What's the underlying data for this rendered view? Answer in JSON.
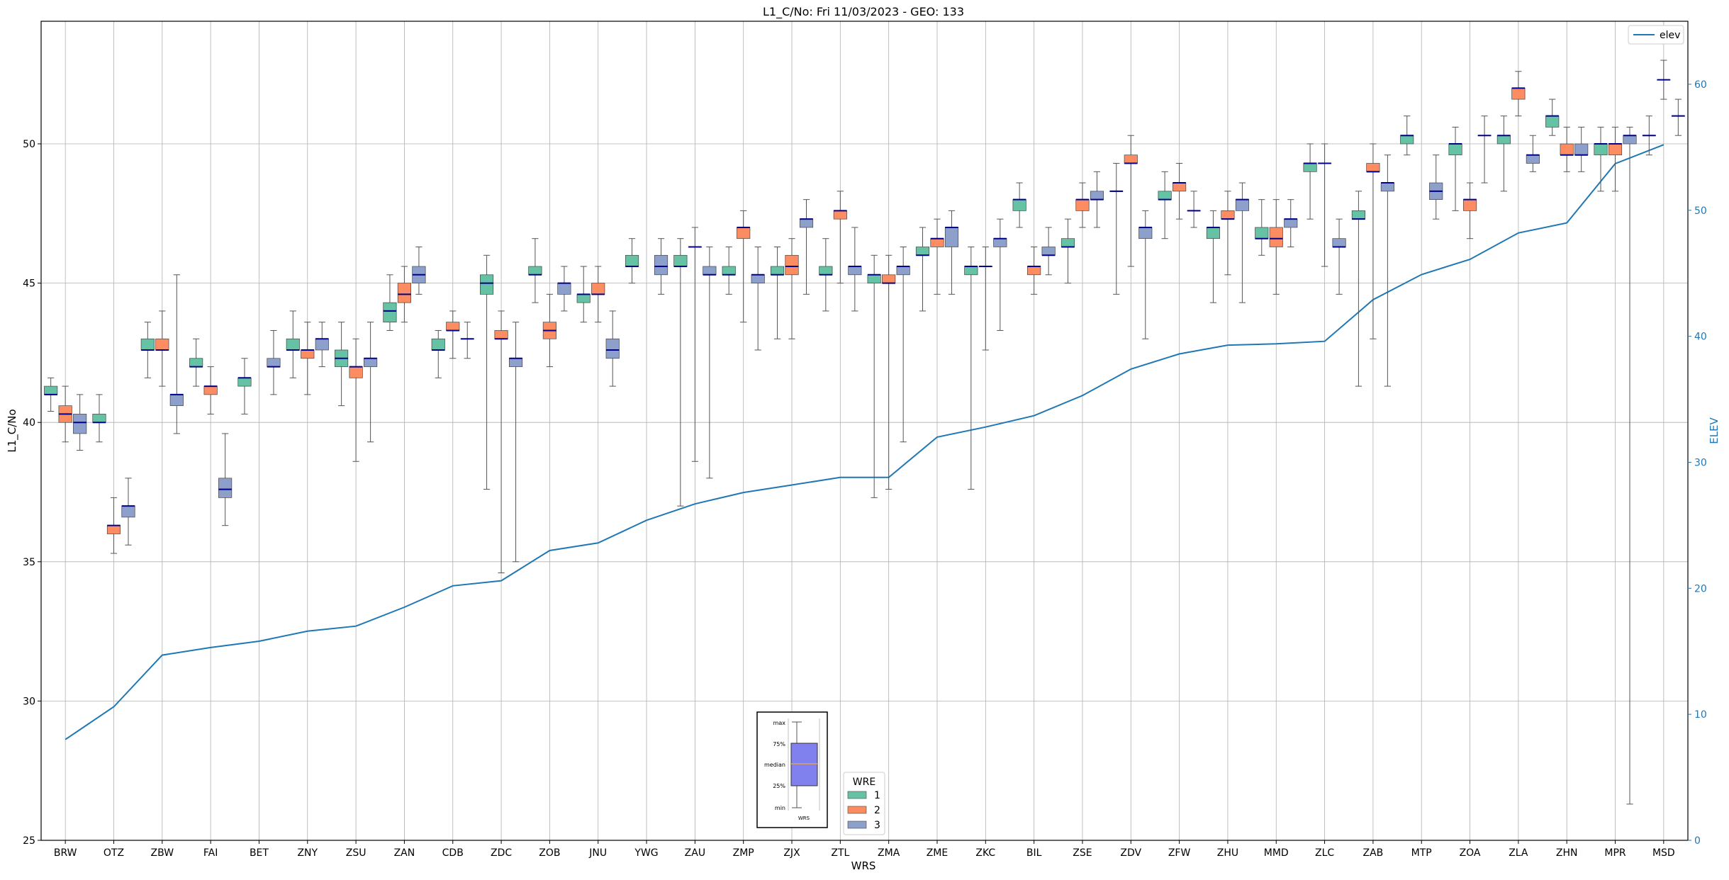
{
  "chart_data": {
    "type": "box",
    "title": "L1_C/No: Fri 11/03/2023 - GEO: 133",
    "xlabel": "WRS",
    "ylabel": "L1_C/No",
    "y2label": "ELEV",
    "ylim": [
      25,
      54.4
    ],
    "y2lim": [
      0,
      65
    ],
    "yticks": [
      25,
      30,
      35,
      40,
      45,
      50
    ],
    "y2ticks": [
      0,
      10,
      20,
      30,
      40,
      50,
      60
    ],
    "grid": true,
    "categories": [
      "BRW",
      "OTZ",
      "ZBW",
      "FAI",
      "BET",
      "ZNY",
      "ZSU",
      "ZAN",
      "CDB",
      "ZDC",
      "ZOB",
      "JNU",
      "YWG",
      "ZAU",
      "ZMP",
      "ZJX",
      "ZTL",
      "ZMA",
      "ZME",
      "ZKC",
      "BIL",
      "ZSE",
      "ZDV",
      "ZFW",
      "ZHU",
      "MMD",
      "ZLC",
      "ZAB",
      "MTP",
      "ZOA",
      "ZLA",
      "ZHN",
      "MPR",
      "MSD"
    ],
    "colors": {
      "1": "#66c2a5",
      "2": "#fc8d62",
      "3": "#8da0cb",
      "median": "#00008b",
      "elev": "#1f77b4",
      "whisker": "#555555",
      "box_edge": "#444444"
    },
    "legend": {
      "title": "WRE",
      "labels": [
        "1",
        "2",
        "3"
      ],
      "position": "lower-center"
    },
    "legend_elev": {
      "label": "elev",
      "position": "top-right"
    },
    "key_box": {
      "labels": [
        "max",
        "75%",
        "median",
        "25%",
        "min"
      ],
      "xlabel": "WRS"
    },
    "series": [
      {
        "name": "1",
        "boxes": [
          {
            "cat": "BRW",
            "min": 40.4,
            "q1": 41.0,
            "med": 41.0,
            "q3": 41.3,
            "max": 41.6
          },
          {
            "cat": "OTZ",
            "min": 39.3,
            "q1": 40.0,
            "med": 40.0,
            "q3": 40.3,
            "max": 41.0
          },
          {
            "cat": "ZBW",
            "min": 41.6,
            "q1": 42.6,
            "med": 42.6,
            "q3": 43.0,
            "max": 43.6
          },
          {
            "cat": "FAI",
            "min": 41.3,
            "q1": 42.0,
            "med": 42.0,
            "q3": 42.3,
            "max": 43.0
          },
          {
            "cat": "BET",
            "min": 40.3,
            "q1": 41.3,
            "med": 41.6,
            "q3": 41.6,
            "max": 42.3
          },
          {
            "cat": "ZNY",
            "min": 41.6,
            "q1": 42.6,
            "med": 42.6,
            "q3": 43.0,
            "max": 44.0
          },
          {
            "cat": "ZSU",
            "min": 40.6,
            "q1": 42.0,
            "med": 42.3,
            "q3": 42.6,
            "max": 43.6
          },
          {
            "cat": "ZAN",
            "min": 43.3,
            "q1": 43.6,
            "med": 44.0,
            "q3": 44.3,
            "max": 45.3
          },
          {
            "cat": "CDB",
            "min": 41.6,
            "q1": 42.6,
            "med": 42.6,
            "q3": 43.0,
            "max": 43.3
          },
          {
            "cat": "ZDC",
            "min": 37.6,
            "q1": 44.6,
            "med": 45.0,
            "q3": 45.3,
            "max": 46.0
          },
          {
            "cat": "ZOB",
            "min": 44.3,
            "q1": 45.3,
            "med": 45.3,
            "q3": 45.6,
            "max": 46.6
          },
          {
            "cat": "JNU",
            "min": 43.6,
            "q1": 44.3,
            "med": 44.6,
            "q3": 44.6,
            "max": 45.6
          },
          {
            "cat": "YWG",
            "min": 45.0,
            "q1": 45.6,
            "med": 45.6,
            "q3": 46.0,
            "max": 46.6
          },
          {
            "cat": "ZAU",
            "min": 37.0,
            "q1": 45.6,
            "med": 45.6,
            "q3": 46.0,
            "max": 46.6
          },
          {
            "cat": "ZMP",
            "min": 44.6,
            "q1": 45.3,
            "med": 45.3,
            "q3": 45.6,
            "max": 46.3
          },
          {
            "cat": "ZJX",
            "min": 43.0,
            "q1": 45.3,
            "med": 45.3,
            "q3": 45.6,
            "max": 46.3
          },
          {
            "cat": "ZTL",
            "min": 44.0,
            "q1": 45.3,
            "med": 45.3,
            "q3": 45.6,
            "max": 46.6
          },
          {
            "cat": "ZMA",
            "min": 37.3,
            "q1": 45.0,
            "med": 45.3,
            "q3": 45.3,
            "max": 46.0
          },
          {
            "cat": "ZME",
            "min": 44.0,
            "q1": 46.0,
            "med": 46.0,
            "q3": 46.3,
            "max": 47.0
          },
          {
            "cat": "ZKC",
            "min": 37.6,
            "q1": 45.3,
            "med": 45.6,
            "q3": 45.6,
            "max": 46.3
          },
          {
            "cat": "BIL",
            "min": 47.0,
            "q1": 47.6,
            "med": 48.0,
            "q3": 48.0,
            "max": 48.6
          },
          {
            "cat": "ZSE",
            "min": 45.0,
            "q1": 46.3,
            "med": 46.3,
            "q3": 46.6,
            "max": 47.3
          },
          {
            "cat": "ZDV",
            "min": 44.6,
            "q1": 48.3,
            "med": 48.3,
            "q3": 48.3,
            "max": 49.3
          },
          {
            "cat": "ZFW",
            "min": 46.6,
            "q1": 48.0,
            "med": 48.0,
            "q3": 48.3,
            "max": 49.0
          },
          {
            "cat": "ZHU",
            "min": 44.3,
            "q1": 46.6,
            "med": 47.0,
            "q3": 47.0,
            "max": 47.6
          },
          {
            "cat": "MMD",
            "min": 46.0,
            "q1": 46.6,
            "med": 46.6,
            "q3": 47.0,
            "max": 48.0
          },
          {
            "cat": "ZLC",
            "min": 47.3,
            "q1": 49.0,
            "med": 49.3,
            "q3": 49.3,
            "max": 50.0
          },
          {
            "cat": "ZAB",
            "min": 41.3,
            "q1": 47.3,
            "med": 47.3,
            "q3": 47.6,
            "max": 48.3
          },
          {
            "cat": "MTP",
            "min": 49.6,
            "q1": 50.0,
            "med": 50.3,
            "q3": 50.3,
            "max": 51.0
          },
          {
            "cat": "ZOA",
            "min": 47.6,
            "q1": 49.6,
            "med": 50.0,
            "q3": 50.0,
            "max": 50.6
          },
          {
            "cat": "ZLA",
            "min": 48.3,
            "q1": 50.0,
            "med": 50.3,
            "q3": 50.3,
            "max": 51.0
          },
          {
            "cat": "ZHN",
            "min": 50.3,
            "q1": 50.6,
            "med": 51.0,
            "q3": 51.0,
            "max": 51.6
          },
          {
            "cat": "MPR",
            "min": 48.3,
            "q1": 49.6,
            "med": 50.0,
            "q3": 50.0,
            "max": 50.6
          },
          {
            "cat": "MSD",
            "min": 49.6,
            "q1": 50.3,
            "med": 50.3,
            "q3": 50.3,
            "max": 51.0
          }
        ]
      },
      {
        "name": "2",
        "boxes": [
          {
            "cat": "BRW",
            "min": 39.3,
            "q1": 40.0,
            "med": 40.3,
            "q3": 40.6,
            "max": 41.3
          },
          {
            "cat": "OTZ",
            "min": 35.3,
            "q1": 36.0,
            "med": 36.3,
            "q3": 36.3,
            "max": 37.3
          },
          {
            "cat": "ZBW",
            "min": 41.3,
            "q1": 42.6,
            "med": 42.6,
            "q3": 43.0,
            "max": 44.0
          },
          {
            "cat": "FAI",
            "min": 40.3,
            "q1": 41.0,
            "med": 41.3,
            "q3": 41.3,
            "max": 42.0
          },
          {
            "cat": "ZNY",
            "min": 41.0,
            "q1": 42.3,
            "med": 42.6,
            "q3": 42.6,
            "max": 43.6
          },
          {
            "cat": "ZSU",
            "min": 38.6,
            "q1": 41.6,
            "med": 42.0,
            "q3": 42.0,
            "max": 43.0
          },
          {
            "cat": "ZAN",
            "min": 43.6,
            "q1": 44.3,
            "med": 44.6,
            "q3": 45.0,
            "max": 45.6
          },
          {
            "cat": "CDB",
            "min": 42.3,
            "q1": 43.3,
            "med": 43.3,
            "q3": 43.6,
            "max": 44.0
          },
          {
            "cat": "ZDC",
            "min": 34.6,
            "q1": 43.0,
            "med": 43.0,
            "q3": 43.3,
            "max": 44.0
          },
          {
            "cat": "ZOB",
            "min": 42.0,
            "q1": 43.0,
            "med": 43.3,
            "q3": 43.6,
            "max": 44.6
          },
          {
            "cat": "JNU",
            "min": 43.6,
            "q1": 44.6,
            "med": 44.6,
            "q3": 45.0,
            "max": 45.6
          },
          {
            "cat": "ZAU",
            "min": 38.6,
            "q1": 46.3,
            "med": 46.3,
            "q3": 46.3,
            "max": 47.0
          },
          {
            "cat": "ZMP",
            "min": 43.6,
            "q1": 46.6,
            "med": 47.0,
            "q3": 47.0,
            "max": 47.6
          },
          {
            "cat": "ZJX",
            "min": 43.0,
            "q1": 45.3,
            "med": 45.6,
            "q3": 46.0,
            "max": 46.6
          },
          {
            "cat": "ZTL",
            "min": 45.0,
            "q1": 47.3,
            "med": 47.6,
            "q3": 47.6,
            "max": 48.3
          },
          {
            "cat": "ZMA",
            "min": 37.6,
            "q1": 45.0,
            "med": 45.0,
            "q3": 45.3,
            "max": 46.0
          },
          {
            "cat": "ZME",
            "min": 44.6,
            "q1": 46.3,
            "med": 46.6,
            "q3": 46.6,
            "max": 47.3
          },
          {
            "cat": "ZKC",
            "min": 42.6,
            "q1": 45.6,
            "med": 45.6,
            "q3": 45.6,
            "max": 46.3
          },
          {
            "cat": "BIL",
            "min": 44.6,
            "q1": 45.3,
            "med": 45.6,
            "q3": 45.6,
            "max": 46.3
          },
          {
            "cat": "ZSE",
            "min": 47.0,
            "q1": 47.6,
            "med": 48.0,
            "q3": 48.0,
            "max": 48.6
          },
          {
            "cat": "ZDV",
            "min": 45.6,
            "q1": 49.3,
            "med": 49.3,
            "q3": 49.6,
            "max": 50.3
          },
          {
            "cat": "ZFW",
            "min": 47.3,
            "q1": 48.3,
            "med": 48.6,
            "q3": 48.6,
            "max": 49.3
          },
          {
            "cat": "ZHU",
            "min": 45.3,
            "q1": 47.3,
            "med": 47.3,
            "q3": 47.6,
            "max": 48.3
          },
          {
            "cat": "MMD",
            "min": 44.6,
            "q1": 46.3,
            "med": 46.6,
            "q3": 47.0,
            "max": 48.0
          },
          {
            "cat": "ZLC",
            "min": 45.6,
            "q1": 49.3,
            "med": 49.3,
            "q3": 49.3,
            "max": 50.0
          },
          {
            "cat": "ZAB",
            "min": 43.0,
            "q1": 49.0,
            "med": 49.0,
            "q3": 49.3,
            "max": 50.0
          },
          {
            "cat": "ZOA",
            "min": 46.6,
            "q1": 47.6,
            "med": 48.0,
            "q3": 48.0,
            "max": 48.6
          },
          {
            "cat": "ZLA",
            "min": 51.0,
            "q1": 51.6,
            "med": 52.0,
            "q3": 52.0,
            "max": 52.6
          },
          {
            "cat": "ZHN",
            "min": 49.0,
            "q1": 49.6,
            "med": 49.6,
            "q3": 50.0,
            "max": 50.6
          },
          {
            "cat": "MPR",
            "min": 48.3,
            "q1": 49.6,
            "med": 50.0,
            "q3": 50.0,
            "max": 50.6
          },
          {
            "cat": "MSD",
            "min": 51.6,
            "q1": 52.3,
            "med": 52.3,
            "q3": 52.3,
            "max": 53.0
          }
        ]
      },
      {
        "name": "3",
        "boxes": [
          {
            "cat": "BRW",
            "min": 39.0,
            "q1": 39.6,
            "med": 40.0,
            "q3": 40.3,
            "max": 41.0
          },
          {
            "cat": "OTZ",
            "min": 35.6,
            "q1": 36.6,
            "med": 37.0,
            "q3": 37.0,
            "max": 38.0
          },
          {
            "cat": "ZBW",
            "min": 39.6,
            "q1": 40.6,
            "med": 41.0,
            "q3": 41.0,
            "max": 45.3
          },
          {
            "cat": "FAI",
            "min": 36.3,
            "q1": 37.3,
            "med": 37.6,
            "q3": 38.0,
            "max": 39.6
          },
          {
            "cat": "BET",
            "min": 41.0,
            "q1": 42.0,
            "med": 42.0,
            "q3": 42.3,
            "max": 43.3
          },
          {
            "cat": "ZNY",
            "min": 42.0,
            "q1": 42.6,
            "med": 43.0,
            "q3": 43.0,
            "max": 43.6
          },
          {
            "cat": "ZSU",
            "min": 39.3,
            "q1": 42.0,
            "med": 42.3,
            "q3": 42.3,
            "max": 43.6
          },
          {
            "cat": "ZAN",
            "min": 44.6,
            "q1": 45.0,
            "med": 45.3,
            "q3": 45.6,
            "max": 46.3
          },
          {
            "cat": "CDB",
            "min": 42.3,
            "q1": 43.0,
            "med": 43.0,
            "q3": 43.0,
            "max": 43.6
          },
          {
            "cat": "ZDC",
            "min": 35.0,
            "q1": 42.0,
            "med": 42.3,
            "q3": 42.3,
            "max": 43.6
          },
          {
            "cat": "ZOB",
            "min": 44.0,
            "q1": 44.6,
            "med": 45.0,
            "q3": 45.0,
            "max": 45.6
          },
          {
            "cat": "JNU",
            "min": 41.3,
            "q1": 42.3,
            "med": 42.6,
            "q3": 43.0,
            "max": 44.0
          },
          {
            "cat": "YWG",
            "min": 44.6,
            "q1": 45.3,
            "med": 45.6,
            "q3": 46.0,
            "max": 46.6
          },
          {
            "cat": "ZAU",
            "min": 38.0,
            "q1": 45.3,
            "med": 45.3,
            "q3": 45.6,
            "max": 46.3
          },
          {
            "cat": "ZMP",
            "min": 42.6,
            "q1": 45.0,
            "med": 45.3,
            "q3": 45.3,
            "max": 46.3
          },
          {
            "cat": "ZJX",
            "min": 44.6,
            "q1": 47.0,
            "med": 47.3,
            "q3": 47.3,
            "max": 48.0
          },
          {
            "cat": "ZTL",
            "min": 44.0,
            "q1": 45.3,
            "med": 45.6,
            "q3": 45.6,
            "max": 47.0
          },
          {
            "cat": "ZMA",
            "min": 39.3,
            "q1": 45.3,
            "med": 45.6,
            "q3": 45.6,
            "max": 46.3
          },
          {
            "cat": "ZME",
            "min": 44.6,
            "q1": 46.3,
            "med": 47.0,
            "q3": 47.0,
            "max": 47.6
          },
          {
            "cat": "ZKC",
            "min": 43.3,
            "q1": 46.3,
            "med": 46.6,
            "q3": 46.6,
            "max": 47.3
          },
          {
            "cat": "BIL",
            "min": 45.3,
            "q1": 46.0,
            "med": 46.0,
            "q3": 46.3,
            "max": 47.0
          },
          {
            "cat": "ZSE",
            "min": 47.0,
            "q1": 48.0,
            "med": 48.0,
            "q3": 48.3,
            "max": 49.0
          },
          {
            "cat": "ZDV",
            "min": 43.0,
            "q1": 46.6,
            "med": 47.0,
            "q3": 47.0,
            "max": 47.6
          },
          {
            "cat": "ZFW",
            "min": 47.0,
            "q1": 47.6,
            "med": 47.6,
            "q3": 47.6,
            "max": 48.3
          },
          {
            "cat": "ZHU",
            "min": 44.3,
            "q1": 47.6,
            "med": 48.0,
            "q3": 48.0,
            "max": 48.6
          },
          {
            "cat": "MMD",
            "min": 46.3,
            "q1": 47.0,
            "med": 47.3,
            "q3": 47.3,
            "max": 48.0
          },
          {
            "cat": "ZLC",
            "min": 44.6,
            "q1": 46.3,
            "med": 46.3,
            "q3": 46.6,
            "max": 47.3
          },
          {
            "cat": "ZAB",
            "min": 41.3,
            "q1": 48.3,
            "med": 48.6,
            "q3": 48.6,
            "max": 49.6
          },
          {
            "cat": "MTP",
            "min": 47.3,
            "q1": 48.0,
            "med": 48.3,
            "q3": 48.6,
            "max": 49.6
          },
          {
            "cat": "ZOA",
            "min": 48.6,
            "q1": 50.3,
            "med": 50.3,
            "q3": 50.3,
            "max": 51.0
          },
          {
            "cat": "ZLA",
            "min": 49.0,
            "q1": 49.3,
            "med": 49.6,
            "q3": 49.6,
            "max": 50.3
          },
          {
            "cat": "ZHN",
            "min": 49.0,
            "q1": 49.6,
            "med": 49.6,
            "q3": 50.0,
            "max": 50.6
          },
          {
            "cat": "MPR",
            "min": 26.3,
            "q1": 50.0,
            "med": 50.3,
            "q3": 50.3,
            "max": 50.6
          },
          {
            "cat": "MSD",
            "min": 50.3,
            "q1": 51.0,
            "med": 51.0,
            "q3": 51.0,
            "max": 51.6
          }
        ]
      }
    ],
    "elev": {
      "name": "elev",
      "values": [
        8.0,
        10.6,
        14.7,
        15.3,
        15.8,
        16.6,
        17.0,
        18.5,
        20.2,
        20.6,
        23.0,
        23.6,
        25.4,
        26.7,
        27.6,
        28.2,
        28.8,
        28.8,
        32.0,
        32.8,
        33.7,
        35.3,
        37.4,
        38.6,
        39.3,
        39.4,
        39.6,
        42.9,
        44.9,
        46.1,
        48.2,
        49.0,
        53.7,
        55.2
      ]
    }
  }
}
